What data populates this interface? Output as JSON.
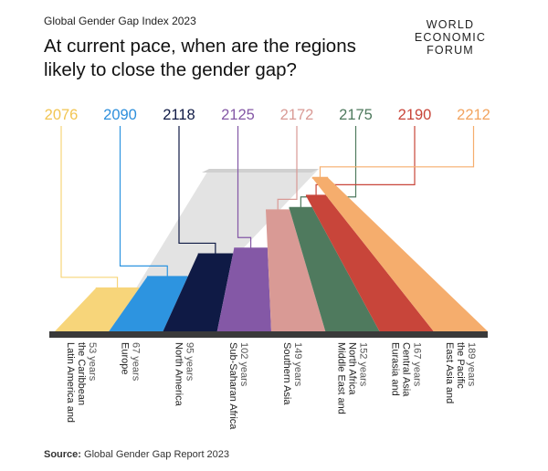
{
  "header": {
    "subtitle": "Global Gender Gap Index 2023",
    "title_line1": "At current pace, when are the regions",
    "title_line2": "likely to close the gender gap?"
  },
  "logo": {
    "line1": "WORLD",
    "line2": "ECONOMIC",
    "line3": "FORUM"
  },
  "footer": {
    "source_label": "Source:",
    "source_text": "Global Gender Gap Report 2023"
  },
  "chart_data": {
    "type": "bar",
    "title": "At current pace, when are the regions likely to close the gender gap?",
    "subtitle": "Global Gender Gap Index 2023",
    "categories": [
      [
        "Latin America and",
        "the Caribbean"
      ],
      [
        "Europe"
      ],
      [
        "North America"
      ],
      [
        "Sub-Saharan Africa"
      ],
      [
        "Southern Asia"
      ],
      [
        "Middle East and",
        "North Africa"
      ],
      [
        "Eurasia and",
        "Central Asia"
      ],
      [
        "East Asia and",
        "the Pacific"
      ]
    ],
    "year_labels": [
      "2076",
      "2090",
      "2118",
      "2125",
      "2172",
      "2175",
      "2190",
      "2212"
    ],
    "years_to_close_labels": [
      "53 years",
      "67 years",
      "95 years",
      "102 years",
      "149 years",
      "152 years",
      "167 years",
      "189 years"
    ],
    "values": [
      53,
      67,
      95,
      102,
      149,
      152,
      167,
      189
    ],
    "colors": [
      "#f7d57a",
      "#2d94e0",
      "#0f1a45",
      "#8458a6",
      "#d99a95",
      "#4f7a5e",
      "#c8453a",
      "#f5ad6d"
    ],
    "year_colors": [
      "#f2c552",
      "#2d8fdc",
      "#0f1a45",
      "#8458a6",
      "#d99a95",
      "#4f7a5e",
      "#c8453a",
      "#f2a45f"
    ]
  }
}
